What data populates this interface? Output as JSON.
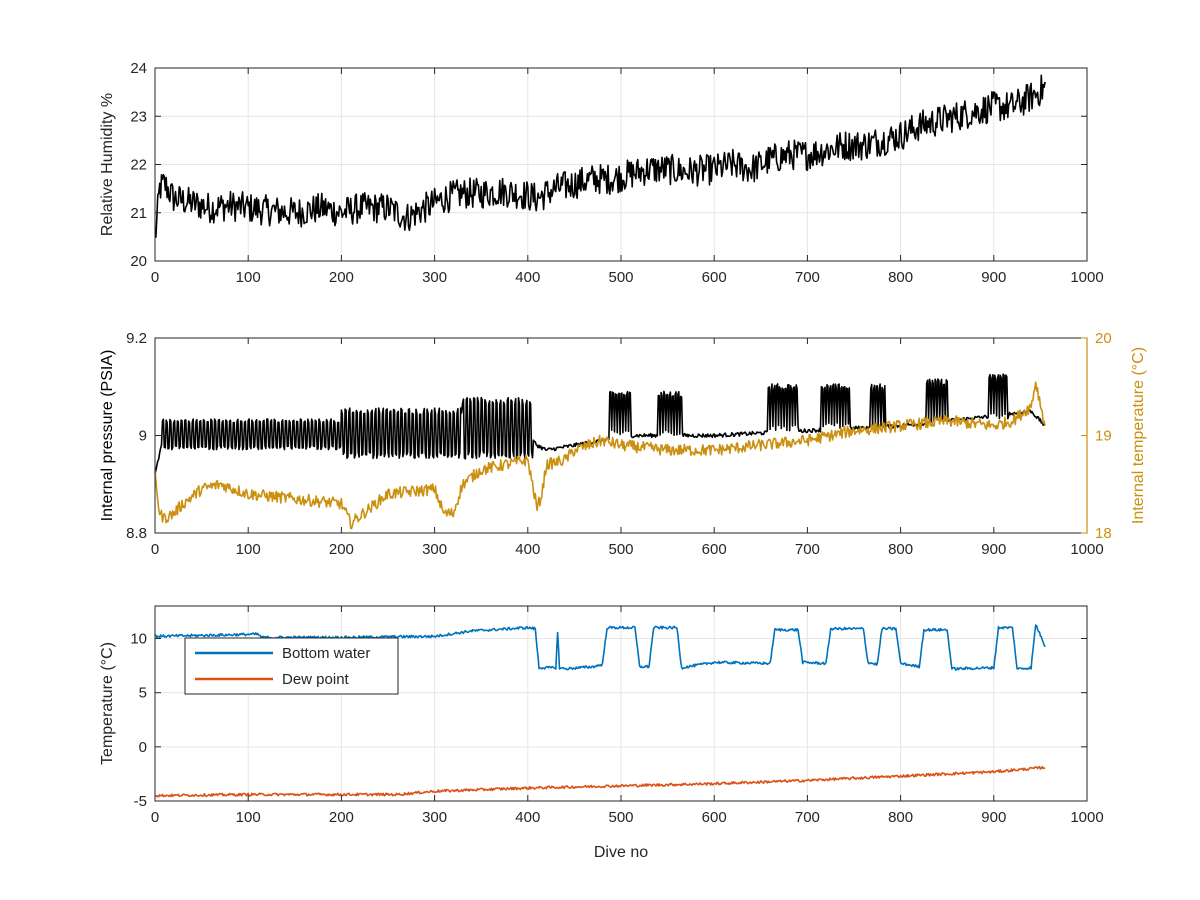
{
  "chart_data": [
    {
      "type": "line",
      "id": "rh",
      "xlabel": "",
      "ylabel": "Relative Humidity %",
      "xlim": [
        0,
        1000
      ],
      "ylim": [
        20,
        24
      ],
      "xticks": [
        0,
        100,
        200,
        300,
        400,
        500,
        600,
        700,
        800,
        900,
        1000
      ],
      "yticks": [
        20,
        21,
        22,
        23,
        24
      ],
      "grid": true,
      "series": [
        {
          "color": "#000000",
          "noise": 0.32,
          "x": [
            0,
            5,
            10,
            20,
            40,
            60,
            80,
            100,
            120,
            150,
            180,
            200,
            220,
            250,
            270,
            290,
            310,
            330,
            350,
            370,
            390,
            410,
            430,
            450,
            470,
            490,
            510,
            530,
            550,
            570,
            600,
            620,
            640,
            660,
            680,
            700,
            720,
            740,
            760,
            780,
            800,
            820,
            840,
            860,
            880,
            900,
            920,
            940,
            955
          ],
          "y": [
            20.4,
            21.5,
            21.6,
            21.3,
            21.2,
            21.1,
            21.15,
            21.1,
            21.05,
            21.0,
            21.1,
            21.0,
            21.1,
            21.1,
            20.9,
            21.1,
            21.3,
            21.4,
            21.4,
            21.45,
            21.4,
            21.3,
            21.5,
            21.6,
            21.7,
            21.7,
            21.8,
            21.9,
            21.9,
            21.85,
            21.9,
            22.0,
            21.9,
            22.1,
            22.2,
            22.2,
            22.3,
            22.4,
            22.4,
            22.5,
            22.6,
            22.8,
            22.9,
            23.0,
            23.1,
            23.2,
            23.2,
            23.4,
            23.6
          ]
        }
      ]
    },
    {
      "type": "line",
      "id": "pressure",
      "xlabel": "",
      "ylabel": "Internal pressure (PSIA)",
      "ylabel_right": "Internal temperature (°C)",
      "xlim": [
        0,
        1000
      ],
      "ylim": [
        8.8,
        9.2
      ],
      "ylim_right": [
        18,
        20
      ],
      "xticks": [
        0,
        100,
        200,
        300,
        400,
        500,
        600,
        700,
        800,
        900,
        1000
      ],
      "yticks": [
        8.8,
        9,
        9.2
      ],
      "yticks_right": [
        18,
        19,
        20
      ],
      "grid": false,
      "series": [
        {
          "axis": "left",
          "color": "#000000",
          "noise": 0.004,
          "x": [
            0,
            8,
            400,
            410,
            420,
            450,
            480,
            500,
            600,
            700,
            800,
            900,
            940,
            955
          ],
          "y": [
            8.92,
            8.99,
            9.0,
            8.98,
            8.97,
            8.98,
            8.99,
            9.0,
            9.0,
            9.01,
            9.02,
            9.04,
            9.05,
            9.02
          ],
          "osc": [
            {
              "x0": 8,
              "x1": 200,
              "lo": 8.975,
              "hi": 9.03,
              "period": 4
            },
            {
              "x0": 200,
              "x1": 330,
              "lo": 8.96,
              "hi": 9.05,
              "period": 4
            },
            {
              "x0": 330,
              "x1": 405,
              "lo": 8.96,
              "hi": 9.07,
              "period": 4
            },
            {
              "x0": 488,
              "x1": 510,
              "lo": 9.005,
              "hi": 9.085,
              "period": 3
            },
            {
              "x0": 540,
              "x1": 565,
              "lo": 9.005,
              "hi": 9.085,
              "period": 3
            },
            {
              "x0": 658,
              "x1": 690,
              "lo": 9.015,
              "hi": 9.1,
              "period": 3
            },
            {
              "x0": 715,
              "x1": 745,
              "lo": 9.02,
              "hi": 9.1,
              "period": 3
            },
            {
              "x0": 768,
              "x1": 783,
              "lo": 9.02,
              "hi": 9.1,
              "period": 3
            },
            {
              "x0": 828,
              "x1": 850,
              "lo": 9.03,
              "hi": 9.11,
              "period": 3
            },
            {
              "x0": 895,
              "x1": 915,
              "lo": 9.04,
              "hi": 9.12,
              "period": 3
            }
          ]
        },
        {
          "axis": "right",
          "color": "#cc9010",
          "noise": 0.06,
          "x": [
            0,
            5,
            10,
            20,
            30,
            50,
            70,
            100,
            150,
            200,
            210,
            250,
            300,
            310,
            320,
            330,
            350,
            400,
            410,
            415,
            420,
            440,
            450,
            480,
            500,
            550,
            600,
            650,
            700,
            750,
            800,
            850,
            900,
            920,
            940,
            945,
            955
          ],
          "y": [
            18.6,
            18.2,
            18.15,
            18.2,
            18.3,
            18.45,
            18.5,
            18.4,
            18.35,
            18.3,
            18.1,
            18.4,
            18.45,
            18.2,
            18.2,
            18.5,
            18.65,
            18.75,
            18.25,
            18.4,
            18.7,
            18.75,
            18.85,
            18.95,
            18.9,
            18.85,
            18.85,
            18.9,
            18.95,
            19.05,
            19.1,
            19.15,
            19.1,
            19.15,
            19.3,
            19.55,
            19.1
          ]
        }
      ]
    },
    {
      "type": "line",
      "id": "temperature",
      "xlabel": "Dive no",
      "ylabel": "Temperature (°C)",
      "xlim": [
        0,
        1000
      ],
      "ylim": [
        -5,
        13
      ],
      "xticks": [
        0,
        100,
        200,
        300,
        400,
        500,
        600,
        700,
        800,
        900,
        1000
      ],
      "yticks": [
        -5,
        0,
        5,
        10
      ],
      "grid": true,
      "legend": {
        "placement": "top-left",
        "entries": [
          "Bottom water",
          "Dew point"
        ]
      },
      "series": [
        {
          "name": "Bottom water",
          "color": "#0072bd",
          "noise": 0.12,
          "x": [
            0,
            60,
            110,
            115,
            200,
            300,
            340,
            360,
            400,
            408,
            412,
            430,
            432,
            434,
            440,
            470,
            480,
            485,
            515,
            520,
            530,
            535,
            560,
            565,
            600,
            660,
            665,
            690,
            695,
            720,
            725,
            760,
            765,
            775,
            780,
            795,
            800,
            820,
            825,
            850,
            855,
            900,
            905,
            920,
            925,
            940,
            945,
            955
          ],
          "y": [
            10.2,
            10.3,
            10.4,
            10.1,
            10.1,
            10.2,
            10.7,
            10.8,
            11.0,
            10.9,
            7.3,
            7.3,
            10.5,
            7.3,
            7.2,
            7.4,
            7.6,
            11.0,
            11.0,
            7.4,
            7.4,
            11.0,
            11.0,
            7.3,
            7.8,
            7.7,
            10.8,
            10.8,
            7.8,
            7.7,
            10.9,
            10.9,
            7.8,
            7.6,
            10.9,
            10.9,
            7.7,
            7.4,
            10.8,
            10.8,
            7.2,
            7.3,
            11.0,
            11.0,
            7.2,
            7.3,
            11.3,
            9.3
          ]
        },
        {
          "name": "Dew point",
          "color": "#d95319",
          "noise": 0.12,
          "x": [
            0,
            100,
            200,
            260,
            300,
            400,
            500,
            600,
            700,
            800,
            900,
            955
          ],
          "y": [
            -4.5,
            -4.4,
            -4.4,
            -4.4,
            -4.1,
            -3.8,
            -3.6,
            -3.4,
            -3.1,
            -2.7,
            -2.3,
            -1.9
          ]
        }
      ]
    }
  ],
  "panel_yticks_text": {
    "rh": [
      "20",
      "21",
      "22",
      "23",
      "24"
    ],
    "pressure_left": [
      "8.8",
      "9",
      "9.2"
    ],
    "pressure_right": [
      "18",
      "19",
      "20"
    ],
    "temperature": [
      "-5",
      "0",
      "5",
      "10"
    ]
  },
  "xtick_labels": [
    "0",
    "100",
    "200",
    "300",
    "400",
    "500",
    "600",
    "700",
    "800",
    "900",
    "1000"
  ]
}
